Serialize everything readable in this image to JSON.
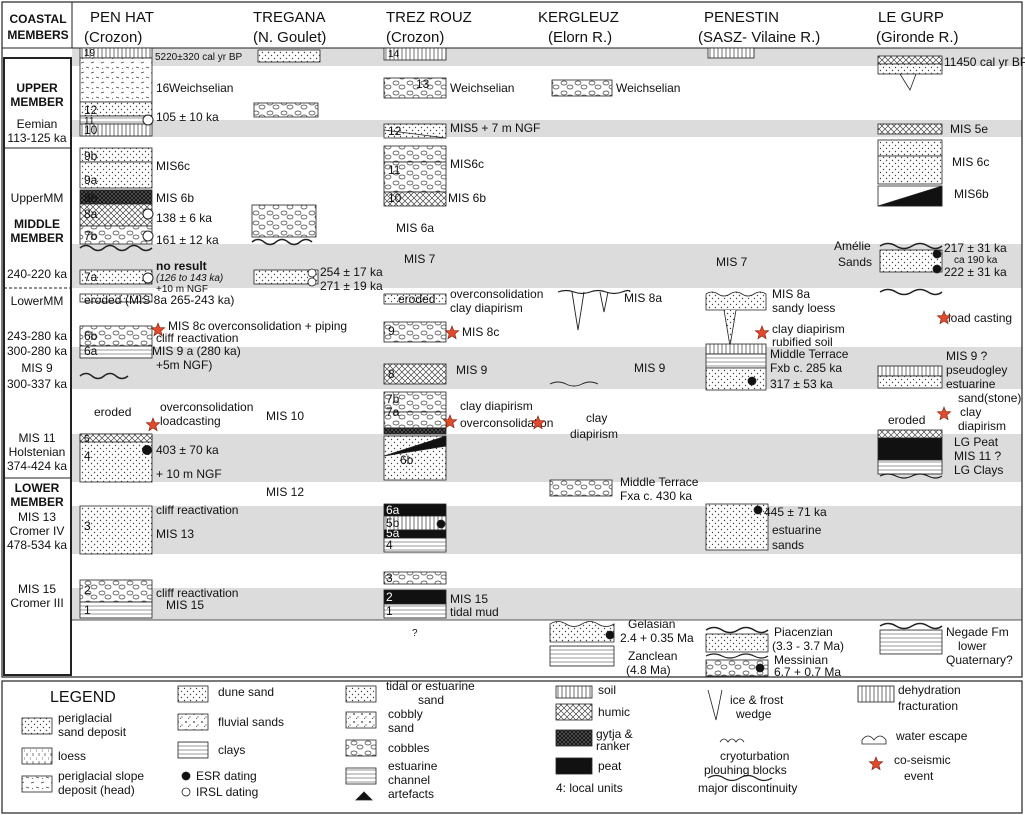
{
  "header": {
    "coastal_members_1": "COASTAL",
    "coastal_members_2": "MEMBERS",
    "sites": [
      {
        "name": "PEN HAT",
        "sub": "(Crozon)"
      },
      {
        "name": "TREGANA",
        "sub": "(N. Goulet)"
      },
      {
        "name": "TREZ ROUZ",
        "sub": "(Crozon)"
      },
      {
        "name": "KERGLEUZ",
        "sub": "(Elorn R.)"
      },
      {
        "name": "PENESTIN",
        "sub": "(SASZ- Vilaine R.)"
      },
      {
        "name": "LE GURP",
        "sub": "(Gironde R.)"
      }
    ]
  },
  "left_column": {
    "upper_member": "UPPER MEMBER",
    "upper_1": "UPPER",
    "upper_2": "MEMBER",
    "eemian": "Eemian",
    "eemian_age": "113-125 ka",
    "upper_mm": "UpperMM",
    "middle_1": "MIDDLE",
    "middle_2": "MEMBER",
    "age_240": "240-220 ka",
    "lower_mm": "LowerMM",
    "age_243": "243-280 ka",
    "age_300": "300-280 ka",
    "mis9": "MIS 9",
    "mis9_age": "300-337 ka",
    "mis11": "MIS 11",
    "holstenian": "Holstenian",
    "mis11_age": "374-424 ka",
    "lower_1": "LOWER",
    "lower_2": "MEMBER",
    "mis13": "MIS 13",
    "cromer4": "Cromer IV",
    "mis13_age": "478-534 ka",
    "mis15": "MIS 15",
    "cromer3": "Cromer III"
  },
  "pen_hat": {
    "u19": "19",
    "date19": "5220±320 cal yr BP",
    "u16": "16",
    "weichselian": "Weichselian",
    "u12": "12",
    "u11": "11",
    "u10": "10",
    "date105": "105 ± 10 ka",
    "u9b": "9b",
    "u9a": "9a",
    "mis6c": "MIS6c",
    "u8b": "8b",
    "mis6b": "MIS 6b",
    "u8a": "8a",
    "date138": "138 ± 6 ka",
    "u7b": "7b",
    "date161": "161 ± 12 ka",
    "u7a": "7a",
    "no_result": "no result",
    "range": "(126 to 143 ka)",
    "ngf10a": "+10 m NGF",
    "eroded": "eroded",
    "mis8a": "(MIS 8a  265-243 ka)",
    "u6b": "6b",
    "mis8c": "MIS 8c",
    "overcons_piping": "overconsolidation + piping",
    "cliff_react": "cliff reactivation",
    "u6a": "6a",
    "mis9a": "MIS 9 a (280 ka)",
    "ngf5": "+5m NGF)",
    "eroded2": "eroded",
    "overcons": "overconsolidation",
    "loadcasting": "loadcasting",
    "u5": "5",
    "u4": "4",
    "date403": "403 ± 70 ka",
    "ngf10b": "+ 10 m NGF",
    "cliff_react2": "cliff reactivation",
    "u3": "3",
    "mis13": "MIS 13",
    "cliff_react3": "cliff reactivation",
    "u2": "2",
    "u1": "1",
    "mis15": "MIS 15"
  },
  "tregana": {
    "date254": "254 ± 17 ka",
    "date271": "271 ± 19 ka",
    "mis10": "MIS 10",
    "mis12": "MIS 12"
  },
  "trez_rouz": {
    "u14": "14",
    "u13": "13",
    "weichselian": "Weichselian",
    "u12": "12",
    "mis5": "MIS5 + 7 m NGF",
    "mis6c": "MIS6c",
    "u11": "11",
    "u10": "10",
    "mis6b": "MIS 6b",
    "mis6a": "MIS 6a",
    "mis7": "MIS 7",
    "eroded": "eroded",
    "overcons": "overconsolidation",
    "clay_diap": "clay diapirism",
    "u9": "9",
    "mis8c": "MIS 8c",
    "u8": "8",
    "mis9": "MIS 9",
    "u7b": "7b",
    "u7a": "7a",
    "clay_diap2": "clay diapirism",
    "overcons2": "overconsolidation",
    "u6b": "6b",
    "u6a": "6a",
    "u5b": "5b",
    "u5a": "5a",
    "u4": "4",
    "u3": "3",
    "u2": "2",
    "u1": "1",
    "mis15": "MIS 15",
    "tidal_mud": "tidal mud",
    "q": "?"
  },
  "kergleuz": {
    "weichselian": "Weichselian",
    "mis8a": "MIS 8a",
    "mis9": "MIS 9",
    "clay": "clay",
    "diapirism": "diapirism",
    "middle_terrace": "Middle Terrace",
    "fxa": "Fxa c. 430 ka",
    "gelasian": "Gelasian",
    "gelasian_age": "2.4 + 0.35 Ma",
    "zanclean": "Zanclean",
    "zanclean_age": "(4.8 Ma)"
  },
  "penestin": {
    "mis7": "MIS 7",
    "mis8a": "MIS 8a",
    "sandy_loess": "sandy loess",
    "clay_diap": "clay diapirism",
    "rubified": "rubified soil",
    "middle_terrace": "Middle Terrace",
    "fxb": "Fxb  c. 285 ka",
    "date317": "317 ± 53 ka",
    "date445": "445 ± 71 ka",
    "estuarine": "estuarine",
    "sands": "sands",
    "piacenzian": "Piacenzian",
    "piac_age": "(3.3 - 3.7 Ma)",
    "messinian": "Messinian",
    "mess_age": "6.7 + 0.7 Ma"
  },
  "le_gurp": {
    "date11450": "11450 cal yr BP",
    "mis5e": "MIS 5e",
    "mis6c": "MIS 6c",
    "mis6b": "MIS6b",
    "amelie": "Amélie",
    "sands": "Sands",
    "date217": "217 ± 31 ka",
    "ca190": "ca 190 ka",
    "date222": "222 ± 31 ka",
    "load_casting": "load casting",
    "mis9q": "MIS 9 ?",
    "pseudogley": "pseudogley",
    "estuarine": "estuarine",
    "eroded": "eroded",
    "sandstone": "sand(stone)",
    "clay": "clay",
    "diapirism": "diapirism",
    "lg_peat": "LG Peat",
    "mis11q": "MIS 11 ?",
    "lg_clays": "LG Clays",
    "negade": "Negade Fm",
    "lower": "lower",
    "quaternary": "Quaternary?"
  },
  "legend": {
    "title": "LEGEND",
    "periglacial_sand_1": "periglacial",
    "periglacial_sand_2": "sand deposit",
    "loess": "loess",
    "slope_1": "periglacial slope",
    "slope_2": "deposit (head)",
    "dune": "dune sand",
    "fluvial": "fluvial sands",
    "clays": "clays",
    "esr": "ESR dating",
    "irsl": "IRSL dating",
    "tidal_1": "tidal or estuarine",
    "tidal_2": "sand",
    "cobbly_1": "cobbly",
    "cobbly_2": "sand",
    "cobbles": "cobbles",
    "channel_1": "estuarine",
    "channel_2": "channel",
    "channel_3": "artefacts",
    "soil": "soil",
    "humic": "humic",
    "gytja_1": "gytja &",
    "gytja_2": "ranker",
    "peat": "peat",
    "local_units": "4: local units",
    "ice_1": "ice & frost",
    "ice_2": "wedge",
    "cryo_1": "cryoturbation",
    "cryo_2": "plouhing blocks",
    "discontinuity": "major discontinuity",
    "dehyd_1": "dehydration",
    "dehyd_2": "fracturation",
    "water": "water escape",
    "coseis_1": "co-seismic",
    "coseis_2": "event"
  },
  "colors": {
    "band": "#dcdcdc",
    "star": "#e24a2a",
    "line": "#222222"
  }
}
